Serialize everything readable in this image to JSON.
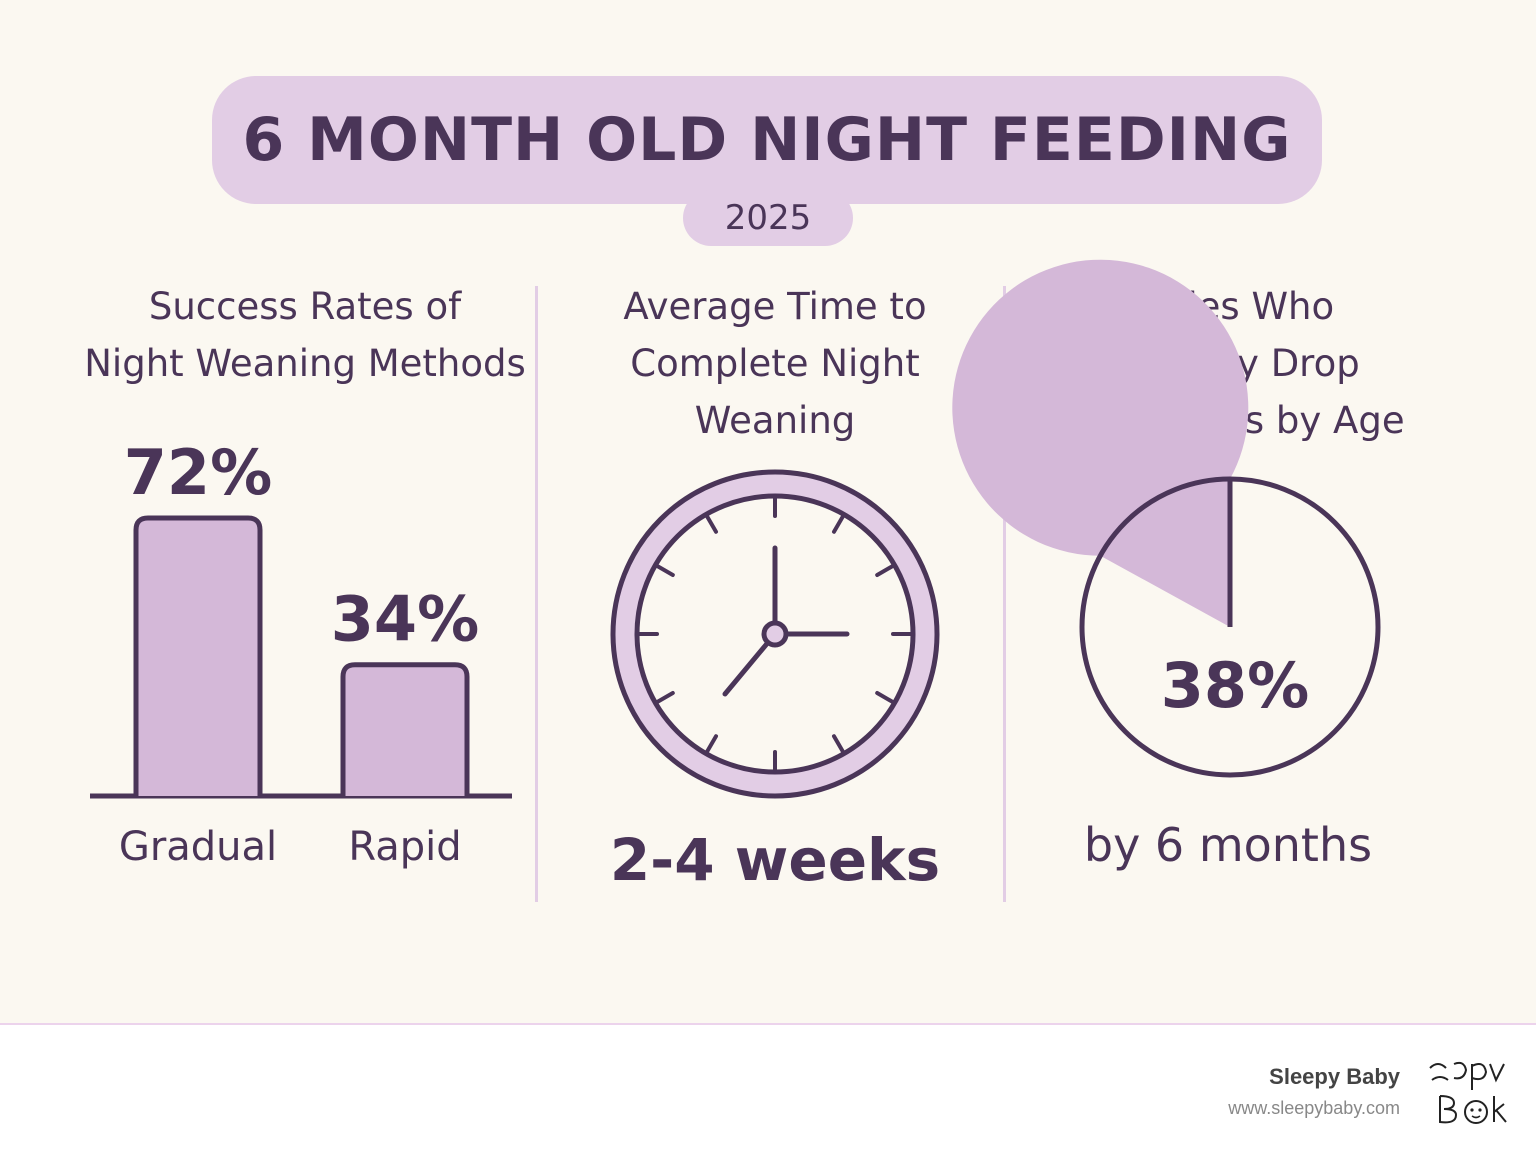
{
  "header": {
    "title": "6 MONTH OLD NIGHT FEEDING",
    "year": "2025"
  },
  "panels": {
    "success": {
      "title": "Success Rates of\nNight Weaning Methods"
    },
    "time": {
      "title": "Average Time to\nComplete Night\nWeaning",
      "value": "2-4 weeks"
    },
    "naturally": {
      "title": "Babies Who\nNaturally Drop\nNight Feeds by Age",
      "caption": "by 6 months"
    }
  },
  "chart_data": [
    {
      "type": "bar",
      "categories": [
        "Gradual",
        "Rapid"
      ],
      "values": [
        72,
        34
      ],
      "value_labels": [
        "72%",
        "34%"
      ],
      "title": "Success Rates of Night Weaning Methods"
    },
    {
      "type": "pie",
      "labels": [
        "by 6 months"
      ],
      "values": [
        38
      ],
      "value_labels": [
        "38%"
      ],
      "title": "Babies Who Naturally Drop Night Feeds by Age"
    }
  ],
  "footer": {
    "brand": "Sleepy Baby",
    "url": "www.sleepybaby.com"
  },
  "colors": {
    "accent": "#e2cde5",
    "bar_fill": "#d4b8d8",
    "ink": "#4a3558",
    "background": "#fbf8f1"
  },
  "icons": {
    "clock": "clock-icon",
    "logo": "sleepy-baby-logo-icon"
  }
}
